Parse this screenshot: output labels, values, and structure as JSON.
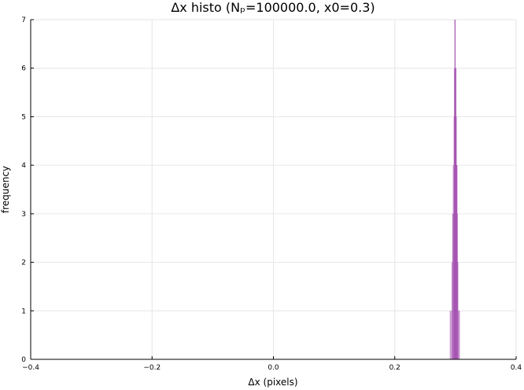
{
  "chart_data": {
    "type": "bar",
    "title": "Δx histo (Nₚ=100000.0, x0=0.3)",
    "xlabel": "Δx (pixels)",
    "ylabel": "frequency",
    "xlim": [
      -0.4,
      0.4
    ],
    "ylim": [
      0,
      7
    ],
    "xticks": [
      {
        "value": -0.4,
        "label": "−0.4"
      },
      {
        "value": -0.2,
        "label": "−0.2"
      },
      {
        "value": 0.0,
        "label": "0.0"
      },
      {
        "value": 0.2,
        "label": "0.2"
      },
      {
        "value": 0.4,
        "label": "0.4"
      }
    ],
    "yticks": [
      {
        "value": 0,
        "label": "0"
      },
      {
        "value": 1,
        "label": "1"
      },
      {
        "value": 2,
        "label": "2"
      },
      {
        "value": 3,
        "label": "3"
      },
      {
        "value": 4,
        "label": "4"
      },
      {
        "value": 5,
        "label": "5"
      },
      {
        "value": 6,
        "label": "6"
      },
      {
        "value": 7,
        "label": "7"
      }
    ],
    "grid": true,
    "color": "#9b3fa8",
    "bins": [
      {
        "x": 0.2915,
        "y": 1
      },
      {
        "x": 0.2935,
        "y": 1
      },
      {
        "x": 0.2945,
        "y": 2
      },
      {
        "x": 0.2955,
        "y": 3
      },
      {
        "x": 0.2965,
        "y": 4
      },
      {
        "x": 0.2972,
        "y": 3
      },
      {
        "x": 0.2978,
        "y": 5
      },
      {
        "x": 0.2984,
        "y": 6
      },
      {
        "x": 0.299,
        "y": 7
      },
      {
        "x": 0.2996,
        "y": 7
      },
      {
        "x": 0.3002,
        "y": 6
      },
      {
        "x": 0.3008,
        "y": 6
      },
      {
        "x": 0.3014,
        "y": 5
      },
      {
        "x": 0.302,
        "y": 4
      },
      {
        "x": 0.3026,
        "y": 4
      },
      {
        "x": 0.3032,
        "y": 3
      },
      {
        "x": 0.304,
        "y": 2
      },
      {
        "x": 0.305,
        "y": 1
      },
      {
        "x": 0.3065,
        "y": 1
      }
    ],
    "bin_width": 0.0015
  }
}
